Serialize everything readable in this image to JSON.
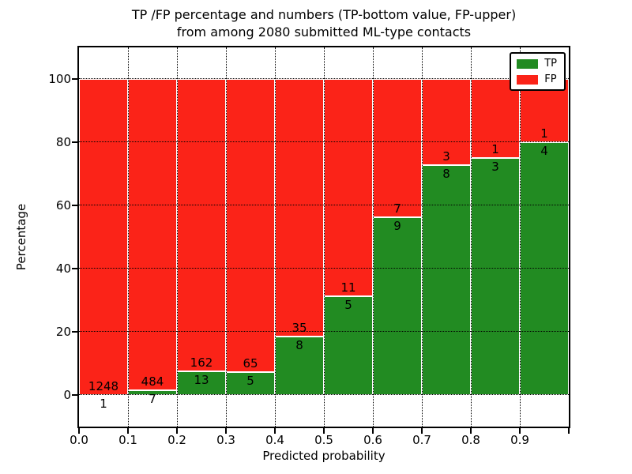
{
  "title": {
    "line1": "TP /FP percentage and numbers (TP-bottom value, FP-upper)",
    "line2": "from among 2080 submitted ML-type contacts"
  },
  "axes": {
    "xlabel": "Predicted probability",
    "ylabel": "Percentage",
    "yticks": [
      {
        "label": "0",
        "value": 0
      },
      {
        "label": "20",
        "value": 20
      },
      {
        "label": "40",
        "value": 40
      },
      {
        "label": "60",
        "value": 60
      },
      {
        "label": "80",
        "value": 80
      },
      {
        "label": "100",
        "value": 100
      }
    ],
    "xticks": [
      {
        "label": "0.0",
        "value": 0.0
      },
      {
        "label": "0.1",
        "value": 0.1
      },
      {
        "label": "0.2",
        "value": 0.2
      },
      {
        "label": "0.3",
        "value": 0.3
      },
      {
        "label": "0.4",
        "value": 0.4
      },
      {
        "label": "0.5",
        "value": 0.5
      },
      {
        "label": "0.6",
        "value": 0.6
      },
      {
        "label": "0.7",
        "value": 0.7
      },
      {
        "label": "0.8",
        "value": 0.8
      },
      {
        "label": "0.9",
        "value": 0.9
      }
    ]
  },
  "legend": {
    "items": [
      {
        "label": "TP",
        "color": "#228b22"
      },
      {
        "label": "FP",
        "color": "#fb2318"
      }
    ]
  },
  "chart_data": {
    "type": "bar",
    "stacked": true,
    "title": "TP /FP percentage and numbers (TP-bottom value, FP-upper) from among 2080 submitted ML-type contacts",
    "xlabel": "Predicted probability",
    "ylabel": "Percentage",
    "xlim": [
      0.0,
      1.0
    ],
    "ylim": [
      -10,
      110
    ],
    "grid": "dotted-black",
    "legend_position": "upper right",
    "total_submitted": 2080,
    "bins": [
      "0.0-0.1",
      "0.1-0.2",
      "0.2-0.3",
      "0.3-0.4",
      "0.4-0.5",
      "0.5-0.6",
      "0.6-0.7",
      "0.7-0.8",
      "0.8-0.9",
      "0.9-1.0"
    ],
    "bin_start": [
      0.0,
      0.1,
      0.2,
      0.3,
      0.4,
      0.5,
      0.6,
      0.7,
      0.8,
      0.9
    ],
    "bin_width": 0.1,
    "series": [
      {
        "name": "TP",
        "color": "#228b22",
        "counts": [
          1,
          7,
          13,
          5,
          8,
          5,
          9,
          8,
          3,
          4
        ],
        "percent": [
          0.08,
          1.43,
          7.43,
          7.14,
          18.6,
          31.25,
          56.25,
          72.73,
          75.0,
          80.0
        ]
      },
      {
        "name": "FP",
        "color": "#fb2318",
        "counts": [
          1248,
          484,
          162,
          65,
          35,
          11,
          7,
          3,
          1,
          1
        ],
        "percent": [
          99.92,
          98.57,
          92.57,
          92.86,
          81.4,
          68.75,
          43.75,
          27.27,
          25.0,
          20.0
        ]
      }
    ]
  }
}
